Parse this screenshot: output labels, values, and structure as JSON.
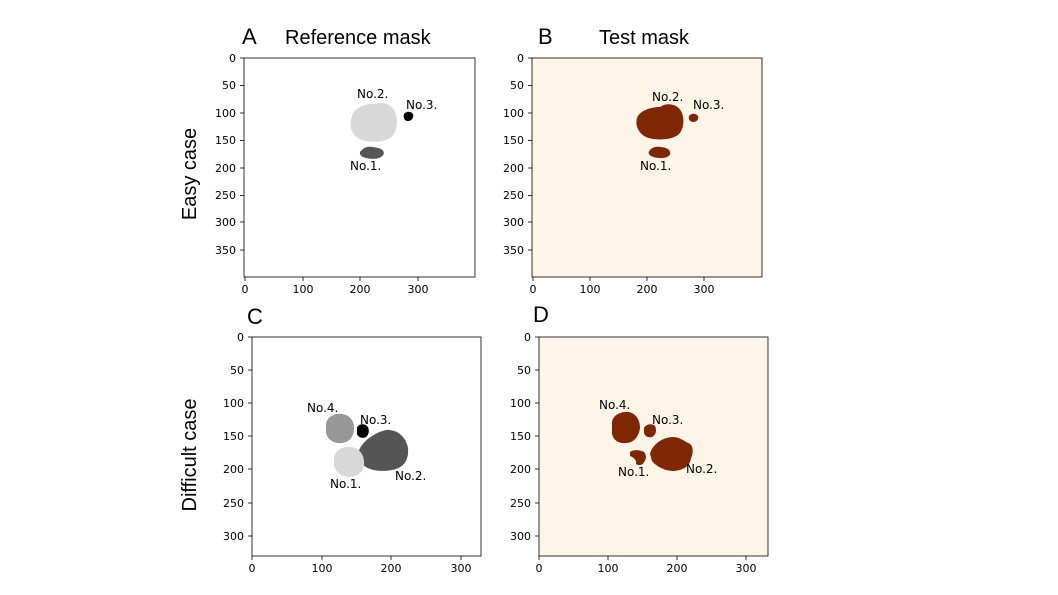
{
  "rows": {
    "easy": "Easy case",
    "difficult": "Difficult case"
  },
  "panels": [
    {
      "id": "A",
      "letter": "A",
      "title": "Reference mask",
      "background": "#ffffff",
      "x_ticks": [
        "0",
        "100",
        "200",
        "300"
      ],
      "y_ticks": [
        "0",
        "50",
        "100",
        "150",
        "200",
        "250",
        "300",
        "350"
      ],
      "labels": [
        "No.1.",
        "No.2.",
        "No.3."
      ],
      "blob_colors": [
        "#555555",
        "#d8d8d8",
        "#000000"
      ]
    },
    {
      "id": "B",
      "letter": "B",
      "title": "Test mask",
      "background": "#fff4e8",
      "x_ticks": [
        "0",
        "100",
        "200",
        "300"
      ],
      "y_ticks": [
        "0",
        "50",
        "100",
        "150",
        "200",
        "250",
        "300",
        "350"
      ],
      "labels": [
        "No.1.",
        "No.2.",
        "No.3."
      ],
      "blob_colors": [
        "#7f2704",
        "#7f2704",
        "#7f2704"
      ]
    },
    {
      "id": "C",
      "letter": "C",
      "title": "",
      "background": "#ffffff",
      "x_ticks": [
        "0",
        "100",
        "200",
        "300"
      ],
      "y_ticks": [
        "0",
        "50",
        "100",
        "150",
        "200",
        "250",
        "300"
      ],
      "labels": [
        "No.1.",
        "No.2.",
        "No.3.",
        "No.4."
      ],
      "blob_colors": [
        "#d8d8d8",
        "#555555",
        "#000000",
        "#979797"
      ]
    },
    {
      "id": "D",
      "letter": "D",
      "title": "",
      "background": "#fff4e8",
      "x_ticks": [
        "0",
        "100",
        "200",
        "300"
      ],
      "y_ticks": [
        "0",
        "50",
        "100",
        "150",
        "200",
        "250",
        "300"
      ],
      "labels": [
        "No.1.",
        "No.2.",
        "No.3.",
        "No.4."
      ],
      "blob_colors": [
        "#7f2704",
        "#7f2704",
        "#7f2704",
        "#7f2704"
      ]
    }
  ]
}
